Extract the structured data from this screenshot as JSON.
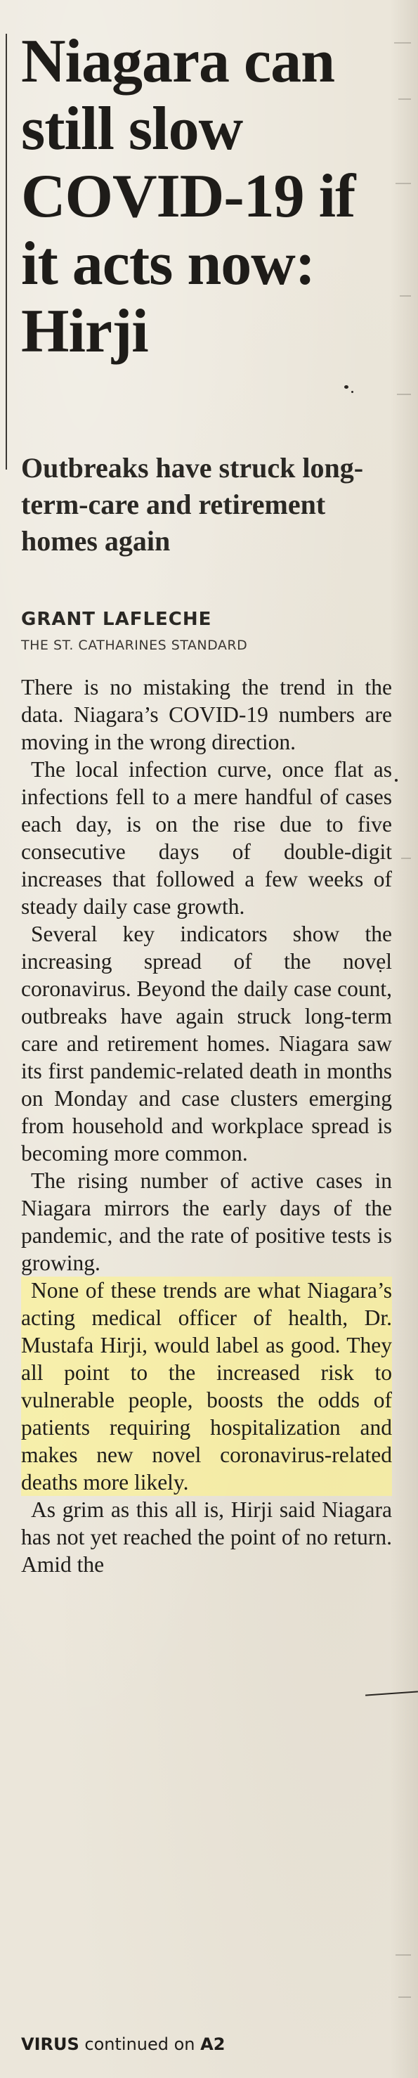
{
  "article": {
    "headline": "Niagara can still slow COVID-19 if it acts now: Hirji",
    "deck": "Outbreaks have struck long-term-care and retirement homes again",
    "byline": "GRANT LAFLECHE",
    "affiliation": "THE ST. CATHARINES STANDARD",
    "paragraphs": [
      "There is no mistaking the trend in the data. Niagara’s COVID-19 numbers are moving in the wrong direction.",
      "The local infection curve, once flat as infections fell to a mere handful of cases each day, is on the rise due to five consecutive days of double-digit increases that followed a few weeks of steady daily case growth.",
      "Several key indicators show the increasing spread of the novel coronavirus. Beyond the daily case count, outbreaks have again struck long-term care and retirement homes. Niagara saw its first pandemic-related death in months on Monday and case clusters emerging from household and workplace spread is becoming more common.",
      "The rising number of active cases in Niagara mirrors the early days of the pandemic, and the rate of positive tests is growing.",
      "None of these trends are what Niagara’s acting medical officer of health, Dr. Mustafa Hirji, would label as good. They all point to the increased risk to vulnerable people, boosts the odds of patients requiring hospitalization and makes new novel coronavirus-related deaths more likely.",
      "As grim as this all is, Hirji said Niagara has not yet reached the point of no return. Amid the"
    ],
    "jump": {
      "keyword": "VIRUS",
      "text": "continued on",
      "page": "A2"
    }
  }
}
